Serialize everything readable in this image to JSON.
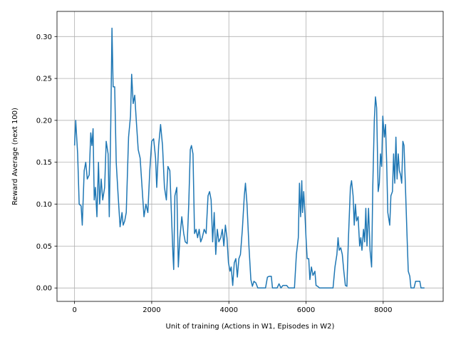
{
  "chart_data": {
    "type": "line",
    "xlabel": "Unit of training (Actions in W1, Episodes in W2)",
    "ylabel": "Reward Average (next 100)",
    "color": "#1f77b4",
    "grid": true,
    "xlim": [
      -455,
      9555
    ],
    "ylim": [
      -0.016,
      0.33
    ],
    "xticks": [
      0,
      2000,
      4000,
      6000,
      8000
    ],
    "yticks": [
      {
        "value": 0,
        "label": "0.00"
      },
      {
        "value": 0.05,
        "label": "0.05"
      },
      {
        "value": 0.1,
        "label": "0.10"
      },
      {
        "value": 0.15,
        "label": "0.15"
      },
      {
        "value": 0.2,
        "label": "0.20"
      },
      {
        "value": 0.25,
        "label": "0.25"
      },
      {
        "value": 0.3,
        "label": "0.30"
      }
    ],
    "x": [
      0,
      30,
      80,
      120,
      170,
      200,
      250,
      290,
      330,
      380,
      420,
      450,
      480,
      510,
      540,
      580,
      620,
      650,
      690,
      730,
      780,
      820,
      870,
      900,
      940,
      970,
      1000,
      1040,
      1080,
      1130,
      1180,
      1230,
      1260,
      1300,
      1340,
      1400,
      1450,
      1480,
      1520,
      1560,
      1600,
      1650,
      1700,
      1750,
      1800,
      1850,
      1900,
      1950,
      2000,
      2050,
      2100,
      2130,
      2180,
      2230,
      2280,
      2330,
      2380,
      2420,
      2470,
      2510,
      2550,
      2570,
      2600,
      2650,
      2690,
      2730,
      2780,
      2830,
      2870,
      2920,
      2960,
      3000,
      3030,
      3070,
      3110,
      3150,
      3190,
      3230,
      3270,
      3310,
      3360,
      3410,
      3460,
      3500,
      3540,
      3580,
      3620,
      3660,
      3700,
      3740,
      3790,
      3830,
      3870,
      3910,
      3950,
      3990,
      4030,
      4060,
      4100,
      4140,
      4180,
      4220,
      4260,
      4300,
      4350,
      4400,
      4430,
      4470,
      4520,
      4570,
      4610,
      4650,
      4700,
      4750,
      4850,
      4950,
      5000,
      5050,
      5100,
      5130,
      5250,
      5300,
      5350,
      5400,
      5500,
      5550,
      5700,
      5750,
      5800,
      5830,
      5860,
      5890,
      5910,
      5940,
      5970,
      6000,
      6030,
      6070,
      6100,
      6140,
      6180,
      6230,
      6260,
      6300,
      6350,
      6700,
      6750,
      6800,
      6830,
      6860,
      6900,
      6940,
      6980,
      7020,
      7060,
      7100,
      7150,
      7180,
      7220,
      7250,
      7280,
      7310,
      7350,
      7390,
      7420,
      7450,
      7490,
      7520,
      7550,
      7580,
      7620,
      7660,
      7700,
      7730,
      7770,
      7800,
      7830,
      7870,
      7900,
      7930,
      7960,
      7990,
      8030,
      8060,
      8090,
      8120,
      8170,
      8200,
      8240,
      8270,
      8300,
      8330,
      8360,
      8390,
      8420,
      8450,
      8480,
      8510,
      8540,
      8570,
      8620,
      8650,
      8690,
      8720,
      8800,
      8840,
      8900,
      8950,
      8980,
      9070
    ],
    "values": [
      0.17,
      0.2,
      0.16,
      0.1,
      0.098,
      0.075,
      0.14,
      0.15,
      0.13,
      0.135,
      0.185,
      0.17,
      0.19,
      0.105,
      0.12,
      0.085,
      0.15,
      0.1,
      0.13,
      0.105,
      0.12,
      0.175,
      0.16,
      0.085,
      0.2,
      0.31,
      0.24,
      0.24,
      0.15,
      0.11,
      0.073,
      0.09,
      0.075,
      0.08,
      0.09,
      0.18,
      0.205,
      0.255,
      0.22,
      0.23,
      0.2,
      0.165,
      0.155,
      0.12,
      0.085,
      0.1,
      0.09,
      0.14,
      0.175,
      0.178,
      0.155,
      0.12,
      0.17,
      0.195,
      0.17,
      0.12,
      0.105,
      0.145,
      0.14,
      0.09,
      0.04,
      0.022,
      0.11,
      0.12,
      0.025,
      0.06,
      0.085,
      0.065,
      0.055,
      0.053,
      0.1,
      0.165,
      0.17,
      0.16,
      0.065,
      0.07,
      0.06,
      0.07,
      0.055,
      0.06,
      0.07,
      0.065,
      0.11,
      0.115,
      0.105,
      0.055,
      0.09,
      0.04,
      0.07,
      0.055,
      0.06,
      0.07,
      0.05,
      0.075,
      0.06,
      0.03,
      0.02,
      0.025,
      0.003,
      0.03,
      0.035,
      0.013,
      0.035,
      0.04,
      0.07,
      0.11,
      0.125,
      0.1,
      0.05,
      0.01,
      0.002,
      0.008,
      0.006,
      0,
      0,
      0,
      0.013,
      0.014,
      0.014,
      0,
      0,
      0.005,
      0,
      0.003,
      0.003,
      0,
      0,
      0.04,
      0.06,
      0.125,
      0.085,
      0.128,
      0.09,
      0.115,
      0.09,
      0.06,
      0.035,
      0.035,
      0.01,
      0.025,
      0.015,
      0.02,
      0.003,
      0.002,
      0,
      0,
      0.025,
      0.04,
      0.06,
      0.045,
      0.048,
      0.04,
      0.02,
      0.003,
      0.002,
      0.06,
      0.12,
      0.128,
      0.11,
      0.075,
      0.1,
      0.08,
      0.085,
      0.05,
      0.06,
      0.045,
      0.07,
      0.055,
      0.095,
      0.05,
      0.095,
      0.045,
      0.025,
      0.12,
      0.2,
      0.228,
      0.215,
      0.115,
      0.125,
      0.16,
      0.145,
      0.205,
      0.18,
      0.195,
      0.15,
      0.09,
      0.075,
      0.11,
      0.115,
      0.16,
      0.125,
      0.18,
      0.13,
      0.16,
      0.14,
      0.135,
      0.125,
      0.175,
      0.17,
      0.13,
      0.06,
      0.02,
      0.014,
      0,
      0,
      0.008,
      0.008,
      0.008,
      0,
      0
    ]
  }
}
